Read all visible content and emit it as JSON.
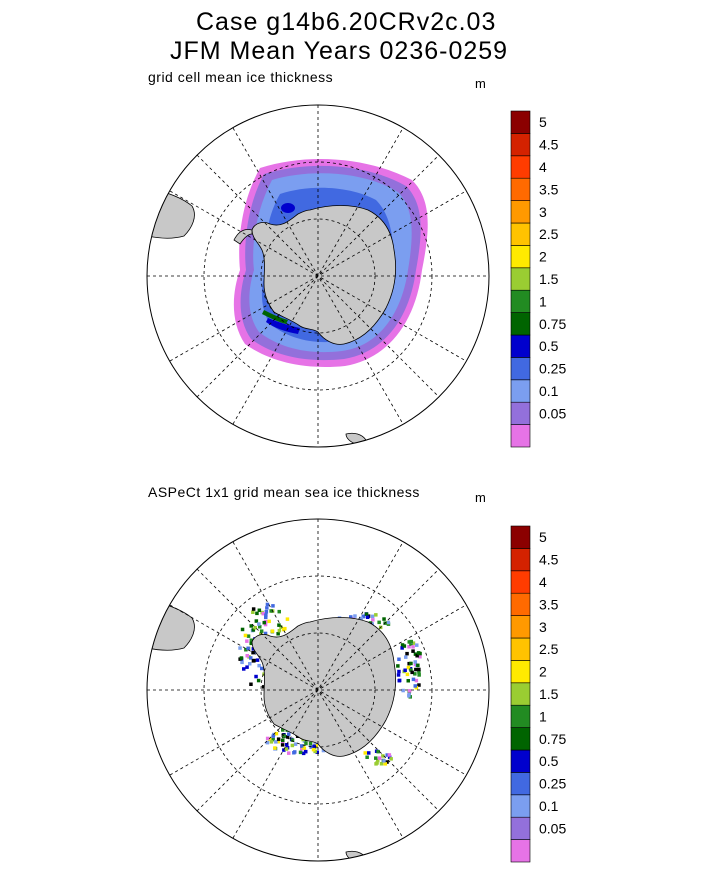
{
  "header": {
    "title_line1": "Case g14b6.20CRv2c.03",
    "title_line2": "JFM Mean     Years 0236-0259"
  },
  "chart_data": [
    {
      "type": "heatmap",
      "projection": "south polar stereographic",
      "title": "grid cell mean ice thickness",
      "units": "m",
      "grid": true,
      "legend": "right",
      "colorbar": {
        "levels": [
          "0.05",
          "0.1",
          "0.25",
          "0.5",
          "0.75",
          "1",
          "1.5",
          "2",
          "2.5",
          "3",
          "3.5",
          "4",
          "4.5",
          "5"
        ],
        "colors": [
          "#e673e6",
          "#9370db",
          "#7b9ef0",
          "#4169e1",
          "#0000cd",
          "#006400",
          "#228b22",
          "#9acd32",
          "#ffea00",
          "#ffc300",
          "#ff9900",
          "#ff6a00",
          "#ff3c00",
          "#d42200",
          "#8b0000"
        ]
      }
    },
    {
      "type": "heatmap",
      "projection": "south polar stereographic",
      "title": "ASPeCt 1x1 grid mean sea ice thickness",
      "units": "m",
      "grid": true,
      "legend": "right",
      "colorbar": {
        "levels": [
          "0.05",
          "0.1",
          "0.25",
          "0.5",
          "0.75",
          "1",
          "1.5",
          "2",
          "2.5",
          "3",
          "3.5",
          "4",
          "4.5",
          "5"
        ],
        "colors": [
          "#e673e6",
          "#9370db",
          "#7b9ef0",
          "#4169e1",
          "#0000cd",
          "#006400",
          "#228b22",
          "#9acd32",
          "#ffea00",
          "#ffc300",
          "#ff9900",
          "#ff6a00",
          "#ff3c00",
          "#d42200",
          "#8b0000"
        ]
      }
    }
  ]
}
